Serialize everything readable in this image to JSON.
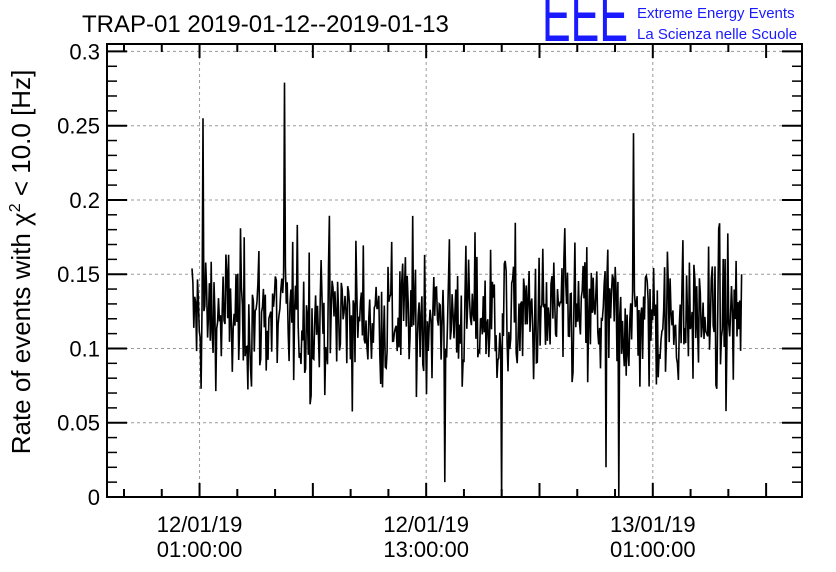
{
  "chart_data": {
    "type": "line",
    "title": "TRAP-01 2019-01-12--2019-01-13",
    "ylabel_prefix": "Rate of events with ",
    "ylabel_chi": "χ",
    "ylabel_sup": "2",
    "ylabel_suffix": " < 10.0 [Hz]",
    "xlabel": "",
    "ylim": [
      0,
      0.305
    ],
    "yticks": [
      {
        "value": 0,
        "label": "0"
      },
      {
        "value": 0.05,
        "label": "0.05"
      },
      {
        "value": 0.1,
        "label": "0.1"
      },
      {
        "value": 0.15,
        "label": "0.15"
      },
      {
        "value": 0.2,
        "label": "0.2"
      },
      {
        "value": 0.25,
        "label": "0.25"
      },
      {
        "value": 0.3,
        "label": "0.3"
      }
    ],
    "xlim_hours": [
      -4.9,
      31.9
    ],
    "xticks": [
      {
        "hours": 0,
        "line1": "12/01/19",
        "line2": "01:00:00"
      },
      {
        "hours": 12,
        "line1": "12/01/19",
        "line2": "13:00:00"
      },
      {
        "hours": 24,
        "line1": "13/01/19",
        "line2": "01:00:00"
      }
    ],
    "grid": true,
    "series": [
      {
        "start_hours": -0.4,
        "end_hours": 28.7,
        "samples": 600,
        "mean": 0.121,
        "noise": 0.035,
        "min": 0.0,
        "max": 0.28,
        "spikes": [
          {
            "hours": 4.5,
            "value": 0.279
          },
          {
            "hours": 21.5,
            "value": 0.02
          },
          {
            "hours": 22.2,
            "value": 0.0
          },
          {
            "hours": 13.0,
            "value": 0.01
          },
          {
            "hours": 16.0,
            "value": 0.0
          },
          {
            "hours": 0.2,
            "value": 0.255
          },
          {
            "hours": 23.0,
            "value": 0.245
          }
        ]
      }
    ]
  },
  "logo": {
    "mark": "EEE",
    "line1": "Extreme Energy Events",
    "line2": "La Scienza nelle Scuole"
  }
}
